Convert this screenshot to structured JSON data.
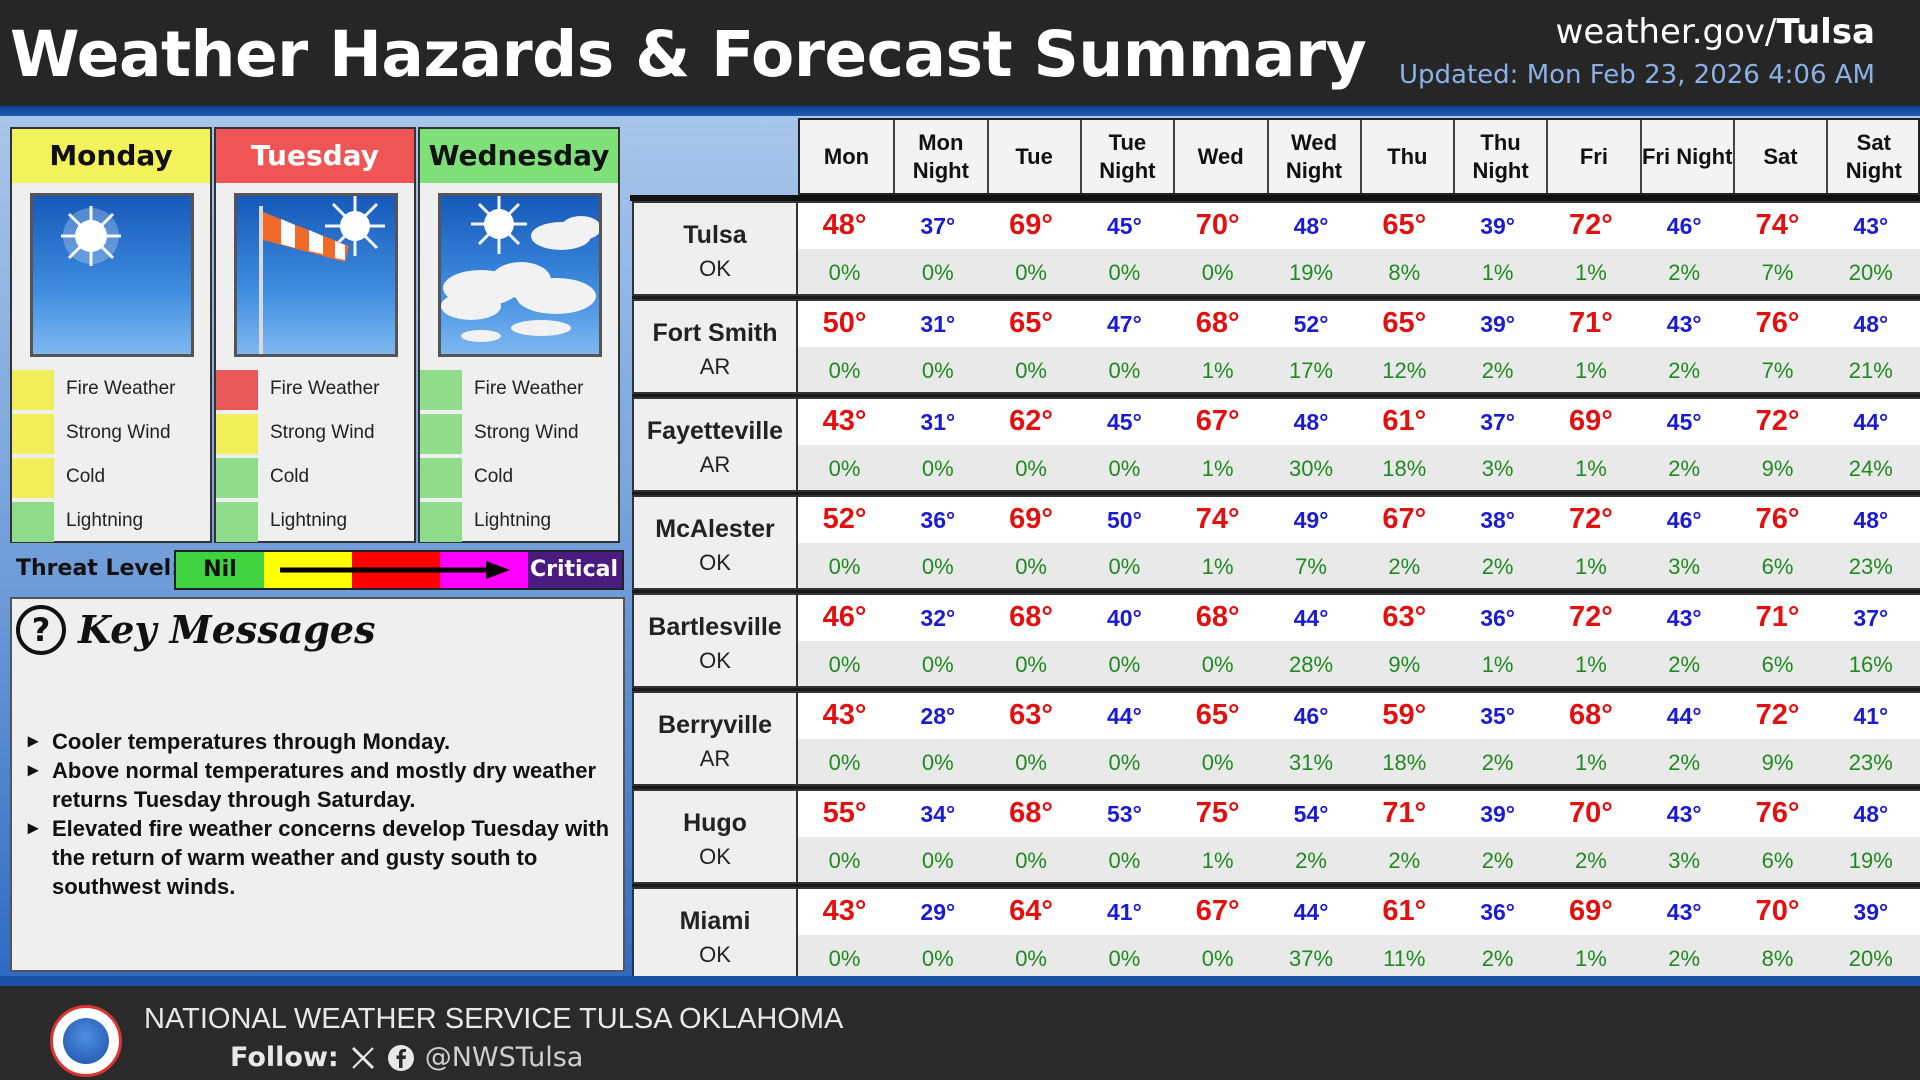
{
  "header": {
    "title": "Weather Hazards & Forecast Summary",
    "site_prefix": "weather.gov/",
    "site_office": "Tulsa",
    "updated": "Updated: Mon Feb 23, 2026 4:06 AM"
  },
  "days": [
    {
      "name": "Monday",
      "header_bg": "#f2f25a",
      "header_color": "#111111",
      "icon": "sunny-icon",
      "hazards": [
        {
          "label": "Fire Weather",
          "color": "#f0ef5a"
        },
        {
          "label": "Strong Wind",
          "color": "#f0ef5a"
        },
        {
          "label": "Cold",
          "color": "#f0ef5a"
        },
        {
          "label": "Lightning",
          "color": "#8fdc8a"
        }
      ]
    },
    {
      "name": "Tuesday",
      "header_bg": "#f05555",
      "header_color": "#ffffff",
      "icon": "windsock-sunny-icon",
      "hazards": [
        {
          "label": "Fire Weather",
          "color": "#e85858"
        },
        {
          "label": "Strong Wind",
          "color": "#f0ef5a"
        },
        {
          "label": "Cold",
          "color": "#8fdc8a"
        },
        {
          "label": "Lightning",
          "color": "#8fdc8a"
        }
      ]
    },
    {
      "name": "Wednesday",
      "header_bg": "#7fe07a",
      "header_color": "#111111",
      "icon": "partly-cloudy-icon",
      "hazards": [
        {
          "label": "Fire Weather",
          "color": "#8fdc8a"
        },
        {
          "label": "Strong Wind",
          "color": "#8fdc8a"
        },
        {
          "label": "Cold",
          "color": "#8fdc8a"
        },
        {
          "label": "Lightning",
          "color": "#8fdc8a"
        }
      ]
    }
  ],
  "threat": {
    "label": "Threat Level:",
    "low": "Nil",
    "high": "Critical",
    "colors": [
      "#3fd33f",
      "#ffff00",
      "#ff0000",
      "#ff00ff",
      "#4a1c80"
    ]
  },
  "key_messages": {
    "title": "Key Messages",
    "icon": "question-circle-icon",
    "items": [
      "Cooler temperatures through Monday.",
      "Above normal temperatures and mostly dry weather returns Tuesday through Saturday.",
      "Elevated fire weather concerns develop Tuesday with the return of warm weather and gusty south to southwest winds."
    ]
  },
  "forecast": {
    "columns": [
      "Mon",
      "Mon Night",
      "Tue",
      "Tue Night",
      "Wed",
      "Wed Night",
      "Thu",
      "Thu Night",
      "Fri",
      "Fri Night",
      "Sat",
      "Sat Night"
    ],
    "colors": {
      "high": "#e31010",
      "low": "#1b1bd1",
      "pop": "#1f8a1f"
    },
    "rows": [
      {
        "city": "Tulsa",
        "state": "OK",
        "temps": [
          "48°",
          "37°",
          "69°",
          "45°",
          "70°",
          "48°",
          "65°",
          "39°",
          "72°",
          "46°",
          "74°",
          "43°"
        ],
        "pops": [
          "0%",
          "0%",
          "0%",
          "0%",
          "0%",
          "19%",
          "8%",
          "1%",
          "1%",
          "2%",
          "7%",
          "20%"
        ]
      },
      {
        "city": "Fort Smith",
        "state": "AR",
        "temps": [
          "50°",
          "31°",
          "65°",
          "47°",
          "68°",
          "52°",
          "65°",
          "39°",
          "71°",
          "43°",
          "76°",
          "48°"
        ],
        "pops": [
          "0%",
          "0%",
          "0%",
          "0%",
          "1%",
          "17%",
          "12%",
          "2%",
          "1%",
          "2%",
          "7%",
          "21%"
        ]
      },
      {
        "city": "Fayetteville",
        "state": "AR",
        "temps": [
          "43°",
          "31°",
          "62°",
          "45°",
          "67°",
          "48°",
          "61°",
          "37°",
          "69°",
          "45°",
          "72°",
          "44°"
        ],
        "pops": [
          "0%",
          "0%",
          "0%",
          "0%",
          "1%",
          "30%",
          "18%",
          "3%",
          "1%",
          "2%",
          "9%",
          "24%"
        ]
      },
      {
        "city": "McAlester",
        "state": "OK",
        "temps": [
          "52°",
          "36°",
          "69°",
          "50°",
          "74°",
          "49°",
          "67°",
          "38°",
          "72°",
          "46°",
          "76°",
          "48°"
        ],
        "pops": [
          "0%",
          "0%",
          "0%",
          "0%",
          "1%",
          "7%",
          "2%",
          "2%",
          "1%",
          "3%",
          "6%",
          "23%"
        ]
      },
      {
        "city": "Bartlesville",
        "state": "OK",
        "temps": [
          "46°",
          "32°",
          "68°",
          "40°",
          "68°",
          "44°",
          "63°",
          "36°",
          "72°",
          "43°",
          "71°",
          "37°"
        ],
        "pops": [
          "0%",
          "0%",
          "0%",
          "0%",
          "0%",
          "28%",
          "9%",
          "1%",
          "1%",
          "2%",
          "6%",
          "16%"
        ]
      },
      {
        "city": "Berryville",
        "state": "AR",
        "temps": [
          "43°",
          "28°",
          "63°",
          "44°",
          "65°",
          "46°",
          "59°",
          "35°",
          "68°",
          "44°",
          "72°",
          "41°"
        ],
        "pops": [
          "0%",
          "0%",
          "0%",
          "0%",
          "0%",
          "31%",
          "18%",
          "2%",
          "1%",
          "2%",
          "9%",
          "23%"
        ]
      },
      {
        "city": "Hugo",
        "state": "OK",
        "temps": [
          "55°",
          "34°",
          "68°",
          "53°",
          "75°",
          "54°",
          "71°",
          "39°",
          "70°",
          "43°",
          "76°",
          "48°"
        ],
        "pops": [
          "0%",
          "0%",
          "0%",
          "0%",
          "1%",
          "2%",
          "2%",
          "2%",
          "2%",
          "3%",
          "6%",
          "19%"
        ]
      },
      {
        "city": "Miami",
        "state": "OK",
        "temps": [
          "43°",
          "29°",
          "64°",
          "41°",
          "67°",
          "44°",
          "61°",
          "36°",
          "69°",
          "43°",
          "70°",
          "39°"
        ],
        "pops": [
          "0%",
          "0%",
          "0%",
          "0%",
          "0%",
          "37%",
          "11%",
          "2%",
          "1%",
          "2%",
          "8%",
          "20%"
        ]
      }
    ]
  },
  "footer": {
    "org": "NATIONAL WEATHER SERVICE TULSA OKLAHOMA",
    "follow_label": "Follow:",
    "handle": "@NWSTulsa",
    "icons": [
      "nws-logo-icon",
      "x-icon",
      "facebook-icon"
    ]
  }
}
